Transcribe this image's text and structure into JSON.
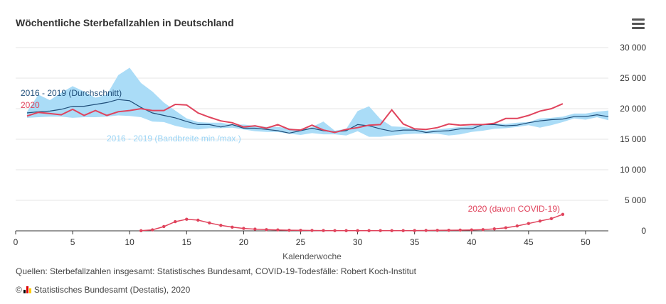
{
  "title": "Wöchentliche Sterbefallzahlen in Deutschland",
  "menu_icon": "hamburger-menu-icon",
  "source": "Quellen: Sterbefallzahlen insgesamt: Statistisches Bundesamt, COVID-19-Todesfälle: Robert Koch-Institut",
  "copyright_symbol": "©",
  "copyright_text": "Statistisches Bundesamt (Destatis), 2020",
  "colors": {
    "band": "#aadcf7",
    "avg": "#1f4e79",
    "y2020": "#e0435c",
    "band_label": "#9ad4f5",
    "flag_black": "#000000",
    "flag_red": "#dd0000",
    "flag_gold": "#ffcc00"
  },
  "chart_data": {
    "type": "line",
    "title": "Wöchentliche Sterbefallzahlen in Deutschland",
    "xlabel": "Kalenderwoche",
    "ylabel": "",
    "xlim": [
      0,
      52
    ],
    "ylim": [
      0,
      30000
    ],
    "x_ticks": [
      0,
      5,
      10,
      15,
      20,
      25,
      30,
      35,
      40,
      45,
      50
    ],
    "y_ticks": [
      0,
      5000,
      10000,
      15000,
      20000,
      25000,
      30000
    ],
    "x_tick_labels": [
      "0",
      "5",
      "10",
      "15",
      "20",
      "25",
      "30",
      "35",
      "40",
      "45",
      "50"
    ],
    "y_tick_labels": [
      "0",
      "5 000",
      "10 000",
      "15 000",
      "20 000",
      "25 000",
      "30 000"
    ],
    "y_axis_position": "right",
    "grid": true,
    "annotations": {
      "avg": "2016 - 2019 (Durchschnitt)",
      "y2020": "2020",
      "band": "2016 - 2019 (Bandbreite min./max.)",
      "covid": "2020 (davon COVID-19)"
    },
    "series": [
      {
        "key": "band",
        "x": [
          1,
          2,
          3,
          4,
          5,
          6,
          7,
          8,
          9,
          10,
          11,
          12,
          13,
          14,
          15,
          16,
          17,
          18,
          19,
          20,
          21,
          22,
          23,
          24,
          25,
          26,
          27,
          28,
          29,
          30,
          31,
          32,
          33,
          34,
          35,
          36,
          37,
          38,
          39,
          40,
          41,
          42,
          43,
          44,
          45,
          46,
          47,
          48,
          49,
          50,
          51,
          52
        ],
        "min": [
          18500,
          18600,
          18700,
          18700,
          18500,
          18600,
          18600,
          18700,
          18900,
          18800,
          18600,
          17900,
          17800,
          17200,
          16800,
          16600,
          16800,
          16800,
          16900,
          16600,
          16300,
          16200,
          16200,
          15900,
          15700,
          16000,
          15800,
          15800,
          15600,
          16300,
          15400,
          15400,
          15600,
          15800,
          15900,
          15900,
          15900,
          15600,
          15800,
          16200,
          16400,
          16700,
          16800,
          17000,
          17300,
          16900,
          17300,
          17800,
          18400,
          18200,
          18600,
          18100
        ],
        "max": [
          19500,
          22300,
          21400,
          22600,
          23700,
          22800,
          21800,
          22300,
          25500,
          26700,
          24200,
          22800,
          21000,
          19700,
          18400,
          17800,
          17700,
          17700,
          17400,
          17400,
          17200,
          17000,
          17000,
          16800,
          16500,
          17000,
          17900,
          16400,
          16700,
          19600,
          20400,
          18300,
          17100,
          17000,
          16700,
          16400,
          16600,
          16800,
          17000,
          17200,
          17500,
          17600,
          17500,
          17700,
          17800,
          18400,
          18500,
          18700,
          19200,
          19200,
          19500,
          19700
        ]
      },
      {
        "key": "avg",
        "name": "2016 - 2019 (Durchschnitt)",
        "x": [
          1,
          2,
          3,
          4,
          5,
          6,
          7,
          8,
          9,
          10,
          11,
          12,
          13,
          14,
          15,
          16,
          17,
          18,
          19,
          20,
          21,
          22,
          23,
          24,
          25,
          26,
          27,
          28,
          29,
          30,
          31,
          32,
          33,
          34,
          35,
          36,
          37,
          38,
          39,
          40,
          41,
          42,
          43,
          44,
          45,
          46,
          47,
          48,
          49,
          50,
          51,
          52
        ],
        "values": [
          19300,
          19500,
          19600,
          19900,
          20400,
          20400,
          20700,
          21000,
          21500,
          21300,
          20200,
          19300,
          18900,
          18500,
          17900,
          17400,
          17400,
          17000,
          17400,
          16800,
          16800,
          16600,
          16400,
          16000,
          16400,
          16800,
          16400,
          16200,
          16400,
          17400,
          17200,
          16700,
          16300,
          16500,
          16500,
          16100,
          16300,
          16400,
          16700,
          16700,
          17400,
          17400,
          17200,
          17300,
          17700,
          18000,
          18200,
          18300,
          18700,
          18700,
          19000,
          18700
        ]
      },
      {
        "key": "y2020",
        "name": "2020",
        "x": [
          1,
          2,
          3,
          4,
          5,
          6,
          7,
          8,
          9,
          10,
          11,
          12,
          13,
          14,
          15,
          16,
          17,
          18,
          19,
          20,
          21,
          22,
          23,
          24,
          25,
          26,
          27,
          28,
          29,
          30,
          31,
          32,
          33,
          34,
          35,
          36,
          37,
          38,
          39,
          40,
          41,
          42,
          43,
          44,
          45,
          46,
          47,
          48
        ],
        "values": [
          18800,
          19400,
          19200,
          19000,
          19900,
          18900,
          19700,
          18900,
          19500,
          19700,
          20000,
          19700,
          19700,
          20700,
          20600,
          19300,
          18600,
          18000,
          17700,
          17000,
          17200,
          16800,
          17400,
          16600,
          16500,
          17300,
          16500,
          16100,
          16600,
          16900,
          17300,
          17400,
          19800,
          17500,
          16700,
          16600,
          16900,
          17500,
          17300,
          17400,
          17400,
          17600,
          18400,
          18400,
          18900,
          19600,
          20000,
          20800
        ]
      },
      {
        "key": "covid",
        "name": "2020 (davon COVID-19)",
        "x": [
          11,
          12,
          13,
          14,
          15,
          16,
          17,
          18,
          19,
          20,
          21,
          22,
          23,
          24,
          25,
          26,
          27,
          28,
          29,
          30,
          31,
          32,
          33,
          34,
          35,
          36,
          37,
          38,
          39,
          40,
          41,
          42,
          43,
          44,
          45,
          46,
          47,
          48
        ],
        "values": [
          20,
          160,
          700,
          1500,
          1900,
          1750,
          1300,
          900,
          600,
          400,
          280,
          200,
          150,
          100,
          80,
          60,
          50,
          40,
          30,
          30,
          30,
          40,
          40,
          40,
          50,
          60,
          80,
          100,
          120,
          150,
          200,
          320,
          500,
          800,
          1200,
          1600,
          2000,
          2700
        ]
      }
    ]
  }
}
